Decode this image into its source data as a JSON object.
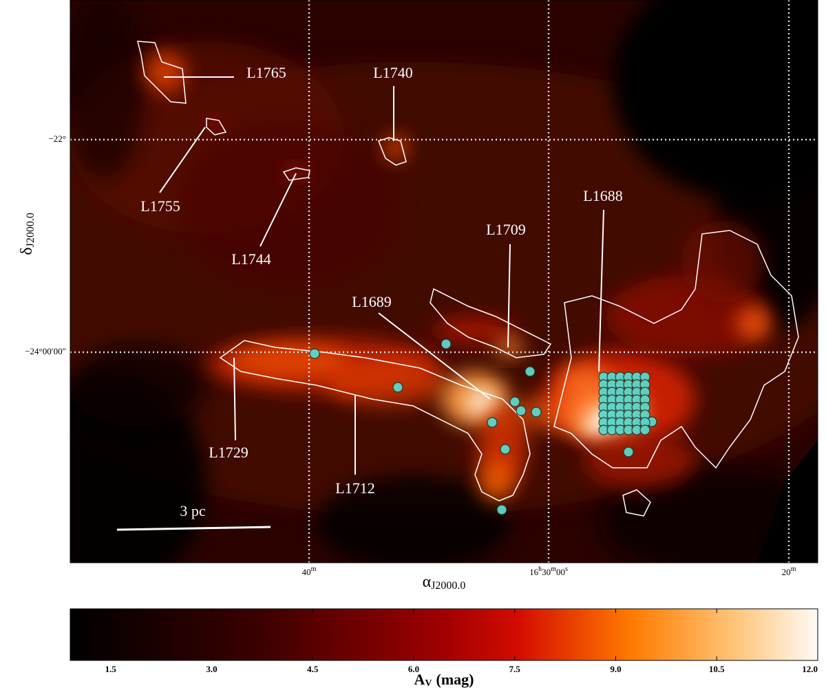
{
  "map": {
    "cloud_labels": [
      "L1765",
      "L1740",
      "L1755",
      "L1744",
      "L1688",
      "L1709",
      "L1689",
      "L1729",
      "L1712"
    ],
    "x_axis": {
      "label": {
        "symbol": "α",
        "subscript": "J2000.0"
      },
      "ticks": [
        [
          "40",
          "m"
        ],
        [
          "16",
          "h",
          "30",
          "m",
          "00",
          "s"
        ],
        [
          "20",
          "m"
        ]
      ]
    },
    "y_axis": {
      "label": {
        "symbol": "δ",
        "subscript": "J2000.0"
      },
      "ticks": [
        "−22°",
        "−24°00′00″"
      ]
    },
    "scale_bar": "3 pc"
  },
  "colorbar": {
    "label": {
      "symbol": "A",
      "subscript": "V",
      "unit": "(mag)"
    },
    "range": [
      0.9,
      12
    ],
    "ticks": [
      1.5,
      {
        "value": 3,
        "label": "3.0"
      },
      4.5,
      {
        "value": 6,
        "label": "6.0"
      },
      7.5,
      {
        "value": 9,
        "label": "9.0"
      },
      10.5,
      {
        "value": 12,
        "label": "12.0"
      }
    ]
  }
}
